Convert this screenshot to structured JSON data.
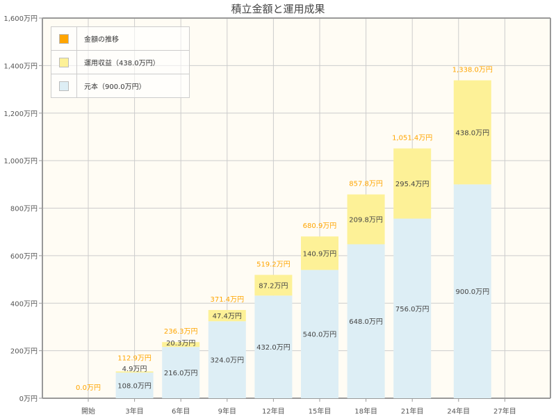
{
  "chart_data": {
    "type": "bar",
    "stacked": true,
    "title": "積立金額と運用成果",
    "categories": [
      "開始",
      "3年目",
      "6年目",
      "9年目",
      "12年目",
      "15年目",
      "18年目",
      "21年目",
      "24年目",
      "27年目"
    ],
    "series": [
      {
        "name": "元本（900.0万円）",
        "color": "#ddeef5",
        "values": [
          0,
          108.0,
          216.0,
          324.0,
          432.0,
          540.0,
          648.0,
          756.0,
          900.0,
          null
        ],
        "labels": [
          "",
          "108.0万円",
          "216.0万円",
          "324.0万円",
          "432.0万円",
          "540.0万円",
          "648.0万円",
          "756.0万円",
          "900.0万円",
          ""
        ]
      },
      {
        "name": "運用収益（438.0万円）",
        "color": "#fdf197",
        "values": [
          0,
          4.9,
          20.3,
          47.4,
          87.2,
          140.9,
          209.8,
          295.4,
          438.0,
          null
        ],
        "labels": [
          "",
          "4.9万円",
          "20.3万円",
          "47.4万円",
          "87.2万円",
          "140.9万円",
          "209.8万円",
          "295.4万円",
          "438.0万円",
          ""
        ]
      }
    ],
    "totals": {
      "name": "金額の推移",
      "color": "#ffa500",
      "values": [
        0.0,
        112.9,
        236.3,
        371.4,
        519.2,
        680.9,
        857.8,
        1051.4,
        1338.0,
        null
      ],
      "labels": [
        "0.0万円",
        "112.9万円",
        "236.3万円",
        "371.4万円",
        "519.2万円",
        "680.9万円",
        "857.8万円",
        "1,051.4万円",
        "1,338.0万円",
        ""
      ]
    },
    "ylim": [
      0,
      1600
    ],
    "yticks": [
      "0万円",
      "200万円",
      "400万円",
      "600万円",
      "800万円",
      "1,000万円",
      "1,200万円",
      "1,400万円",
      "1,600万円"
    ],
    "grid": true,
    "legend_position": "top-left",
    "plot_background": "#fffcf4"
  }
}
